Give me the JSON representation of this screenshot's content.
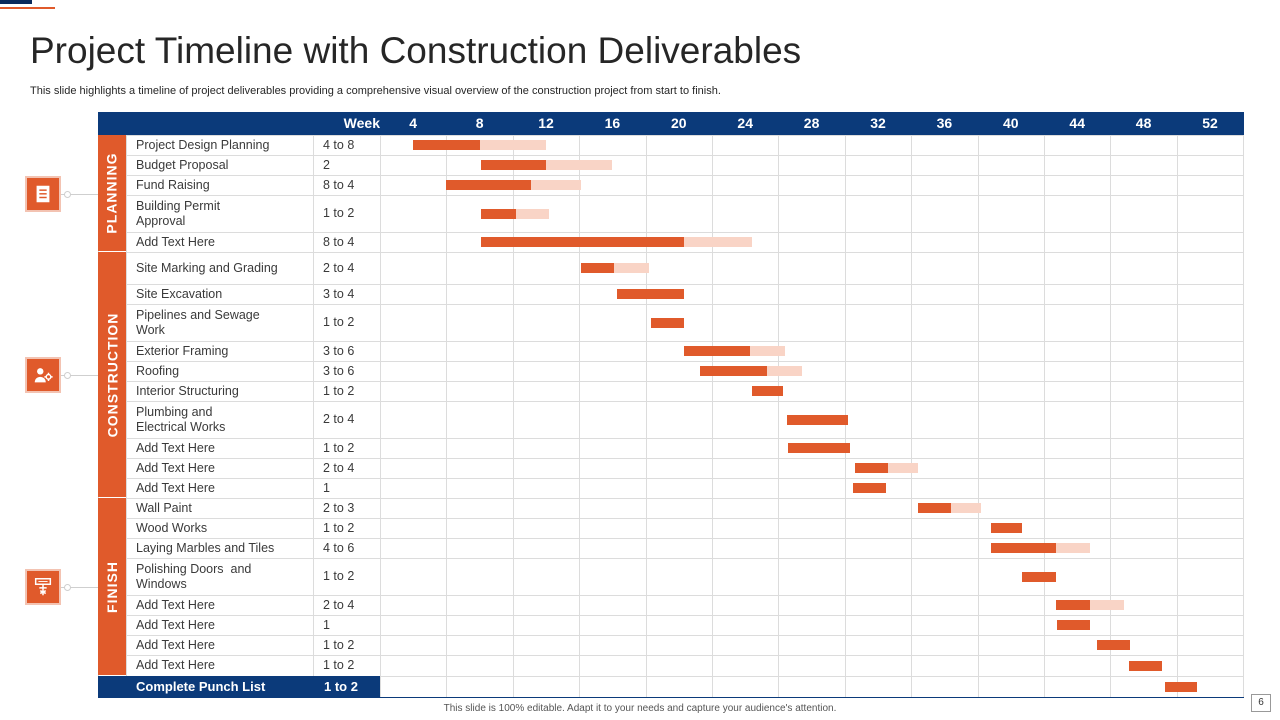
{
  "title": "Project Timeline with Construction Deliverables",
  "subtitle": "This slide highlights a timeline of project deliverables providing a comprehensive visual overview of the construction project from start to finish.",
  "header": {
    "week_label": "Week",
    "weeks": [
      "4",
      "8",
      "12",
      "16",
      "20",
      "24",
      "28",
      "32",
      "36",
      "40",
      "44",
      "48",
      "52"
    ]
  },
  "phases": [
    {
      "label": "PLANNING",
      "icon": "document-icon"
    },
    {
      "label": "CONSTRUCTION",
      "icon": "worker-gear-icon"
    },
    {
      "label": "FINISH",
      "icon": "paint-roller-icon"
    }
  ],
  "tasks": [
    {
      "name": "Project Design Planning",
      "duration": "4 to 8",
      "phase": 0,
      "start_week": 4,
      "dark_weeks": 4,
      "light_weeks": 4
    },
    {
      "name": "Budget Proposal",
      "duration": "2",
      "phase": 0,
      "start_week": 8.1,
      "dark_weeks": 3.9,
      "light_weeks": 4
    },
    {
      "name": "Fund Raising",
      "duration": "8 to 4",
      "phase": 0,
      "start_week": 6,
      "dark_weeks": 5.1,
      "light_weeks": 3
    },
    {
      "name": "Building Permit\nApproval",
      "duration": "1 to 2",
      "phase": 0,
      "start_week": 8.1,
      "dark_weeks": 2.1,
      "light_weeks": 2
    },
    {
      "name": "Add Text Here",
      "duration": "8 to 4",
      "phase": 0,
      "start_week": 8.1,
      "dark_weeks": 12.2,
      "light_weeks": 4.1
    },
    {
      "name": "Site Marking and Grading",
      "duration": "2 to 4",
      "phase": 1,
      "start_week": 14.1,
      "dark_weeks": 2,
      "light_weeks": 2.1
    },
    {
      "name": "Site Excavation",
      "duration": "3 to 4",
      "phase": 1,
      "start_week": 16.3,
      "dark_weeks": 4,
      "light_weeks": 0
    },
    {
      "name": "Pipelines and Sewage\nWork",
      "duration": "1 to 2",
      "phase": 1,
      "start_week": 18.3,
      "dark_weeks": 2,
      "light_weeks": 0
    },
    {
      "name": "Exterior Framing",
      "duration": "3 to 6",
      "phase": 1,
      "start_week": 20.3,
      "dark_weeks": 4,
      "light_weeks": 2.1
    },
    {
      "name": "Roofing",
      "duration": "3 to 6",
      "phase": 1,
      "start_week": 21.3,
      "dark_weeks": 4,
      "light_weeks": 2.1
    },
    {
      "name": "Interior Structuring",
      "duration": "1 to 2",
      "phase": 1,
      "start_week": 24.4,
      "dark_weeks": 1.9,
      "light_weeks": 0
    },
    {
      "name": "Plumbing and\nElectrical Works",
      "duration": "2 to 4",
      "phase": 1,
      "start_week": 26.5,
      "dark_weeks": 3.7,
      "light_weeks": 0
    },
    {
      "name": "Add Text Here",
      "duration": "1 to 2",
      "phase": 1,
      "start_week": 26.6,
      "dark_weeks": 3.7,
      "light_weeks": 0
    },
    {
      "name": "Add Text Here",
      "duration": "2 to 4",
      "phase": 1,
      "start_week": 30.6,
      "dark_weeks": 2,
      "light_weeks": 1.8
    },
    {
      "name": "Add Text Here",
      "duration": "1",
      "phase": 1,
      "start_week": 30.5,
      "dark_weeks": 2,
      "light_weeks": 0
    },
    {
      "name": "Wall Paint",
      "duration": "2 to 3",
      "phase": 2,
      "start_week": 34.4,
      "dark_weeks": 2,
      "light_weeks": 1.8
    },
    {
      "name": "Wood Works",
      "duration": "1 to 2",
      "phase": 2,
      "start_week": 38.8,
      "dark_weeks": 1.9,
      "light_weeks": 0
    },
    {
      "name": "Laying Marbles and Tiles",
      "duration": "4 to 6",
      "phase": 2,
      "start_week": 38.8,
      "dark_weeks": 3.9,
      "light_weeks": 2.1
    },
    {
      "name": "Polishing Doors  and\nWindows",
      "duration": "1 to 2",
      "phase": 2,
      "start_week": 40.7,
      "dark_weeks": 2,
      "light_weeks": 0
    },
    {
      "name": "Add Text Here",
      "duration": "2 to 4",
      "phase": 2,
      "start_week": 42.7,
      "dark_weeks": 2.1,
      "light_weeks": 2
    },
    {
      "name": "Add Text Here",
      "duration": "1",
      "phase": 2,
      "start_week": 42.8,
      "dark_weeks": 2,
      "light_weeks": 0
    },
    {
      "name": "Add Text Here",
      "duration": "1 to 2",
      "phase": 2,
      "start_week": 45.2,
      "dark_weeks": 2,
      "light_weeks": 0
    },
    {
      "name": "Add Text Here",
      "duration": "1 to 2",
      "phase": 2,
      "start_week": 47.1,
      "dark_weeks": 2,
      "light_weeks": 0
    }
  ],
  "summary": {
    "name": "Complete Punch List",
    "duration": "1 to 2",
    "start_week": 49.3,
    "dark_weeks": 1.9
  },
  "footer_note": "This slide is 100% editable. Adapt it to your needs and capture your audience's attention.",
  "page_number": "6",
  "colors": {
    "navy": "#0b3a7a",
    "accent": "#e05a2b",
    "accent_light": "#f9d4c6",
    "grid": "#dcdcdc"
  }
}
